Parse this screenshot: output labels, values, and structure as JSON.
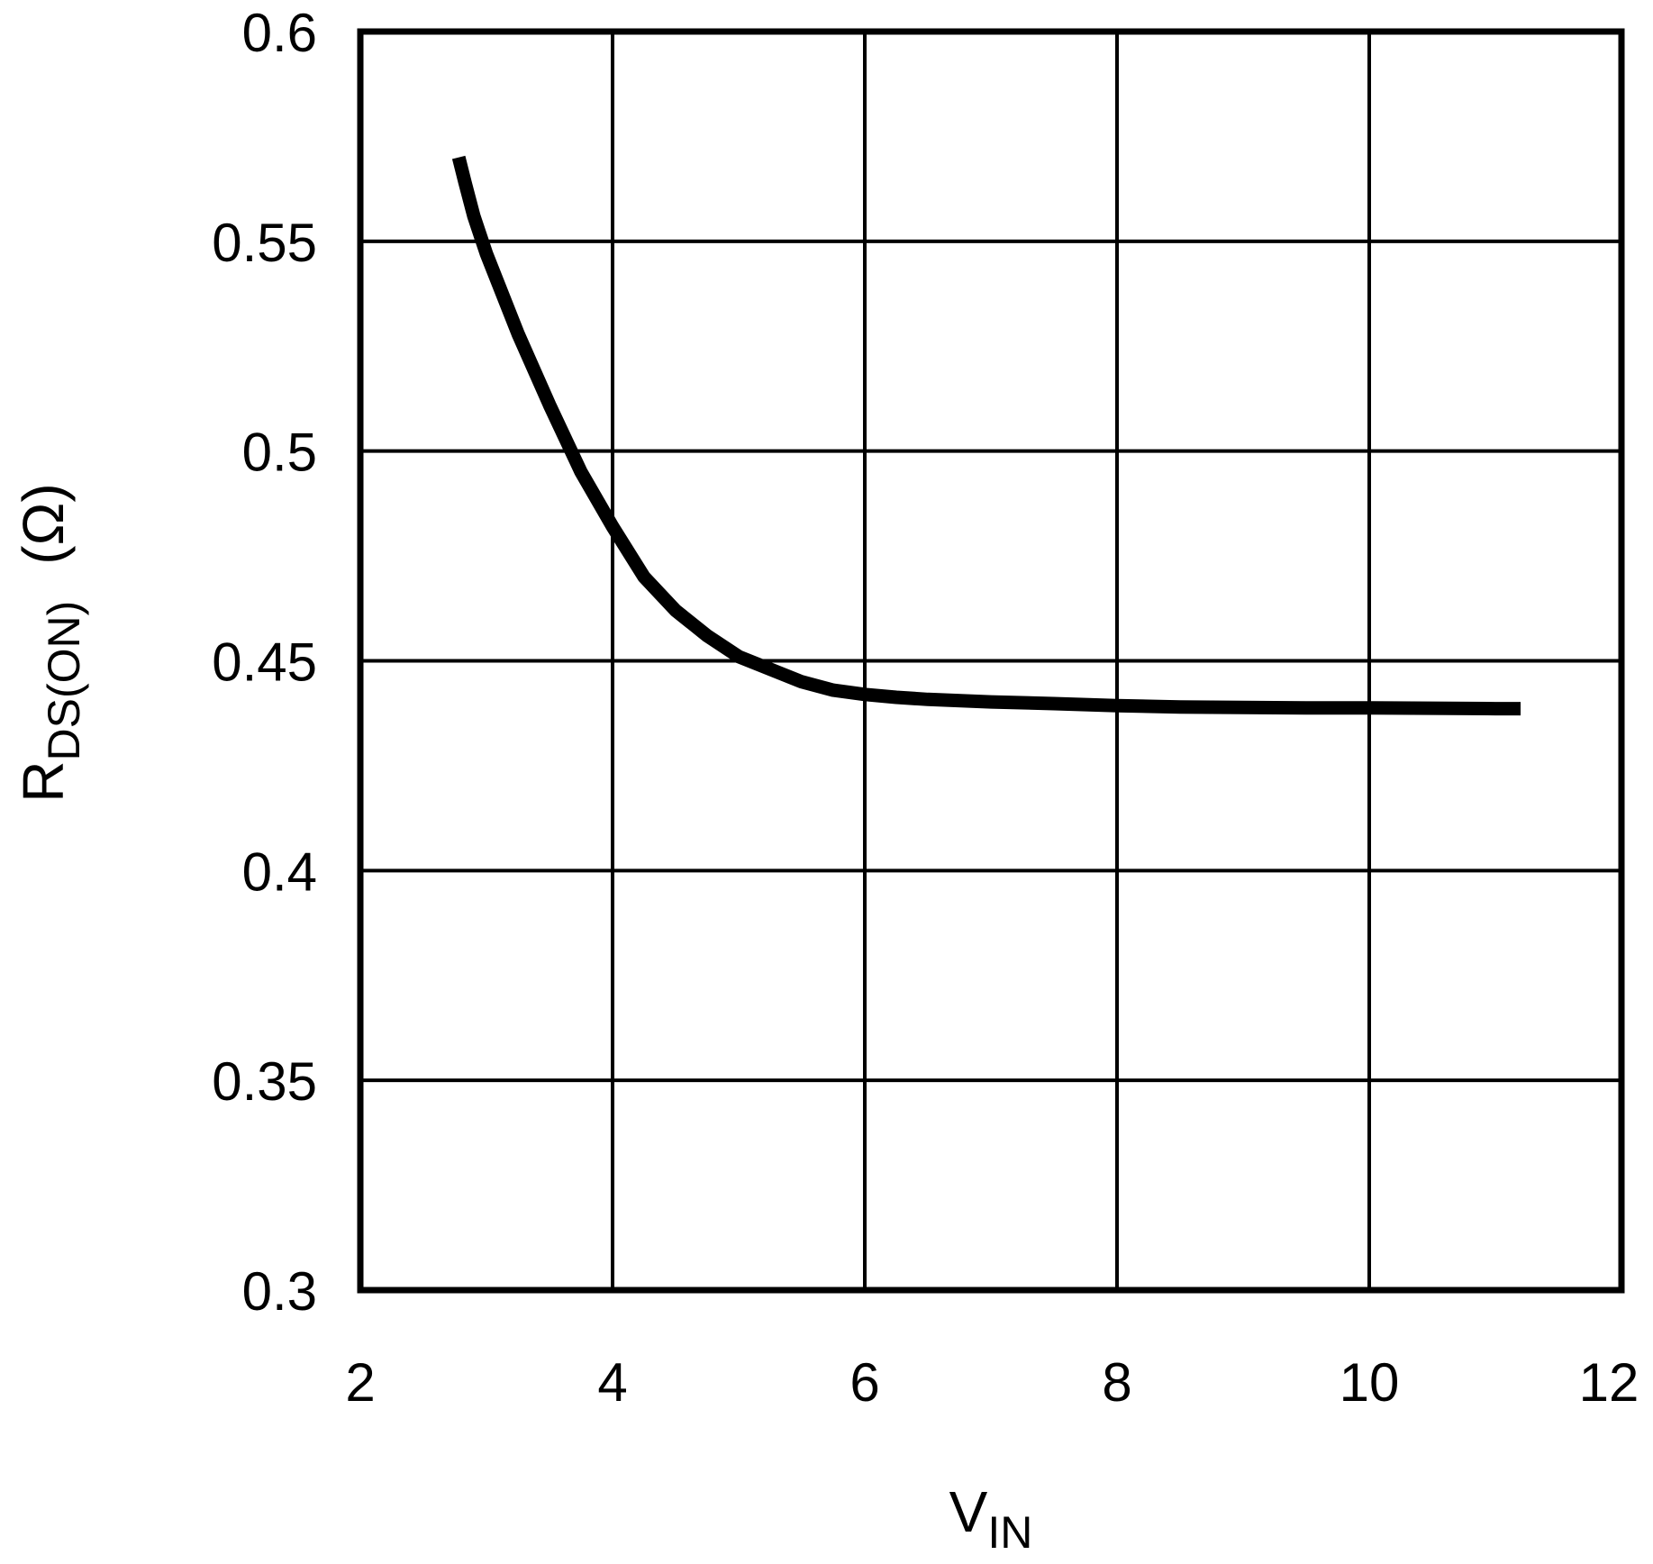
{
  "chart_data": {
    "type": "line",
    "title": "",
    "xlabel": {
      "main": "V",
      "sub": "IN"
    },
    "ylabel": {
      "main": "R",
      "sub": "DS(ON)",
      "unit": "(Ω)"
    },
    "xlim": [
      2,
      12
    ],
    "ylim": [
      0.3,
      0.6
    ],
    "xticks": [
      2,
      4,
      6,
      8,
      10,
      12
    ],
    "yticks": [
      0.3,
      0.35,
      0.4,
      0.45,
      0.5,
      0.55,
      0.6
    ],
    "ytick_labels": [
      "0.3",
      "0.35",
      "0.4",
      "0.45",
      "0.5",
      "0.55",
      "0.6"
    ],
    "grid": true,
    "legend": "none",
    "colors": {
      "line": "#000000",
      "grid": "#000000"
    },
    "series": [
      {
        "x": [
          2.78,
          2.83,
          2.9,
          3.0,
          3.25,
          3.5,
          3.75,
          4.0,
          4.25,
          4.5,
          4.75,
          5.0,
          5.25,
          5.5,
          5.75,
          6.0,
          6.25,
          6.5,
          7.0,
          7.5,
          8.0,
          8.5,
          9.0,
          9.5,
          10.0,
          10.5,
          11.0,
          11.2
        ],
        "y": [
          0.57,
          0.564,
          0.556,
          0.547,
          0.528,
          0.511,
          0.495,
          0.482,
          0.47,
          0.462,
          0.456,
          0.451,
          0.448,
          0.445,
          0.443,
          0.442,
          0.4413,
          0.4408,
          0.4402,
          0.4398,
          0.4393,
          0.439,
          0.4389,
          0.4388,
          0.4388,
          0.4387,
          0.4386,
          0.4386
        ]
      }
    ]
  }
}
